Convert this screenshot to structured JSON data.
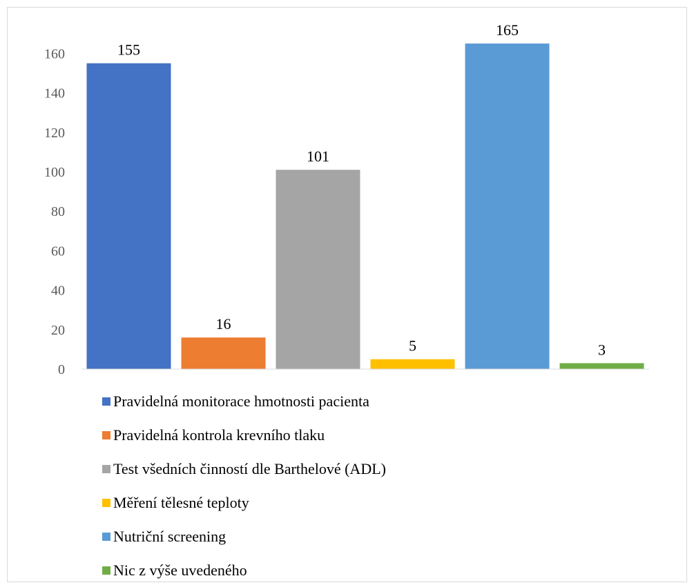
{
  "chart_data": {
    "type": "bar",
    "categories": [
      "Pravidelná monitorace hmotnosti pacienta",
      "Pravidelná kontrola krevního tlaku",
      "Test všedních činností dle Barthelové (ADL)",
      "Měření tělesné teploty",
      "Nutriční screening",
      "Nic z výše uvedeného"
    ],
    "values": [
      155,
      16,
      101,
      5,
      165,
      3
    ],
    "data_labels": [
      "155",
      "16",
      "101",
      "5",
      "165",
      "3"
    ],
    "colors": [
      "#4472C4",
      "#ED7D31",
      "#A5A5A5",
      "#FFC000",
      "#5B9BD5",
      "#70AD47"
    ],
    "ylim": [
      0,
      160
    ],
    "yticks": [
      0,
      20,
      40,
      60,
      80,
      100,
      120,
      140,
      160
    ],
    "grid": false,
    "legend_position": "bottom",
    "title": "",
    "xlabel": "",
    "ylabel": ""
  }
}
